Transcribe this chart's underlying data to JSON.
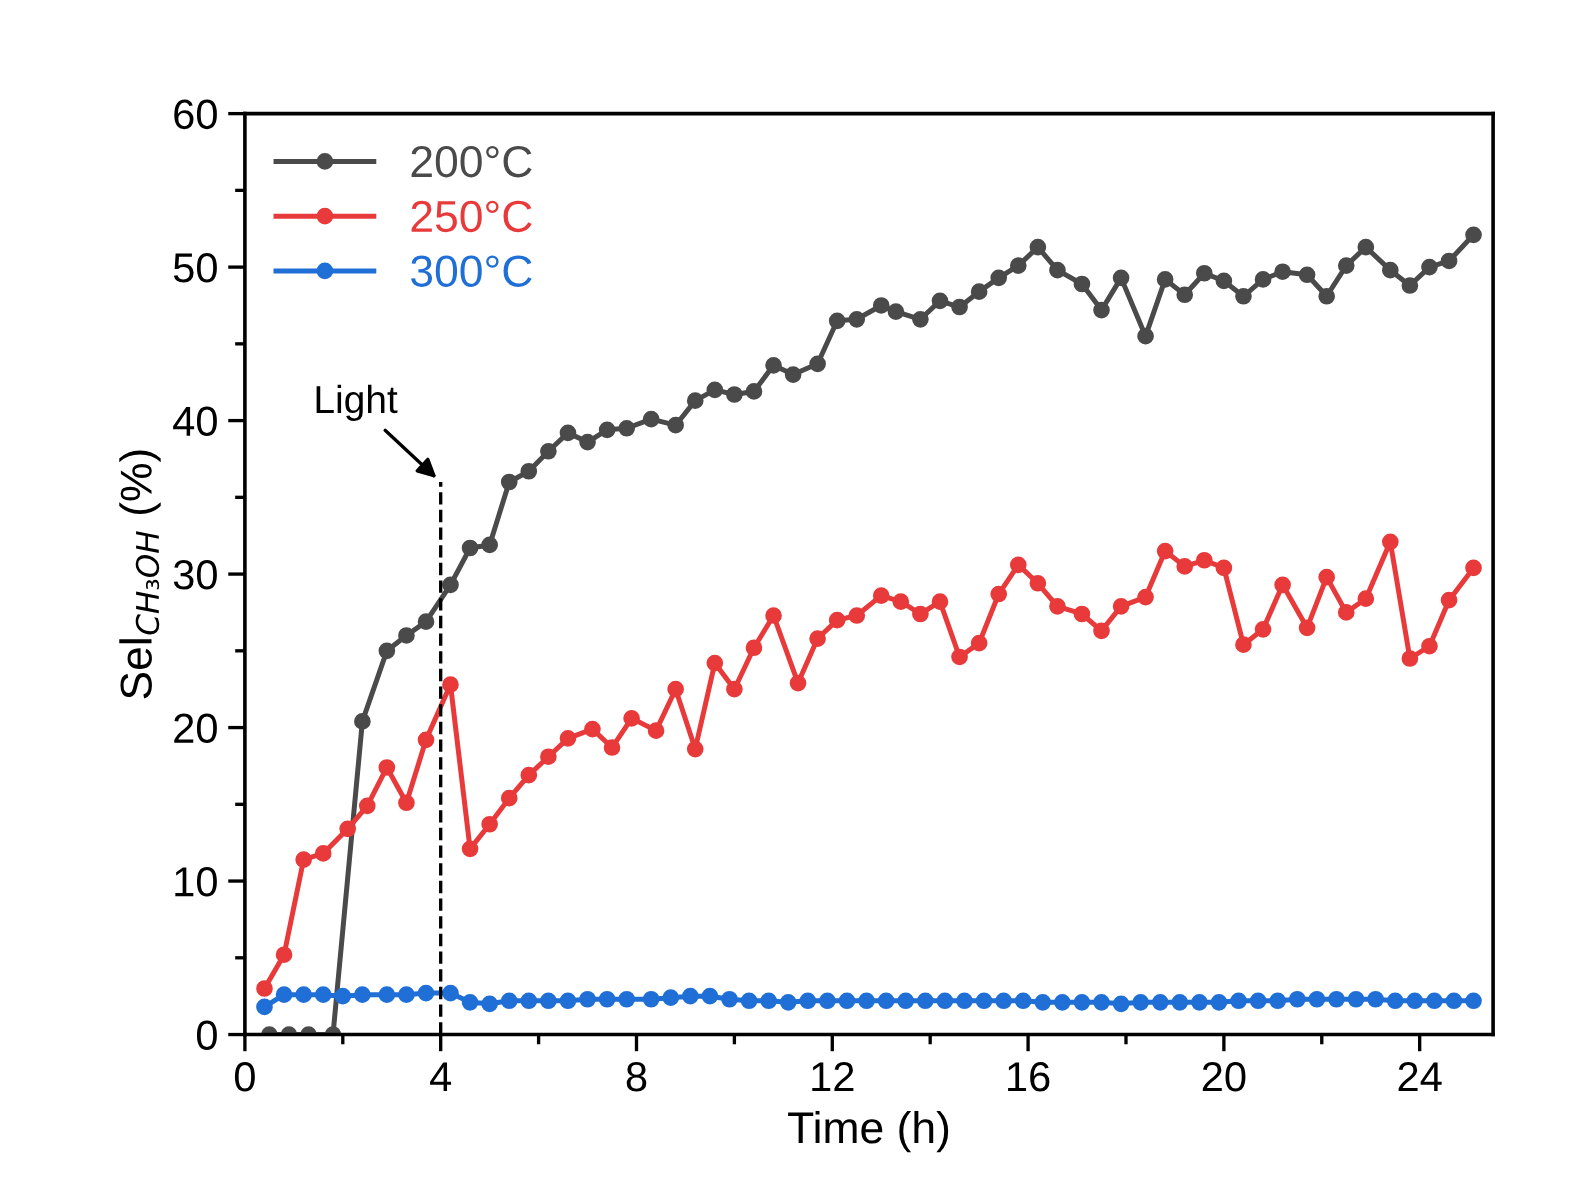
{
  "chart_data": {
    "type": "line",
    "xlabel": "Time (h)",
    "ylabel": "Sel$_{CH₃OH}$ (%)",
    "xlim": [
      0,
      25.5
    ],
    "ylim": [
      0,
      60
    ],
    "xticks": [
      0,
      {
        "value": 2,
        "label": null
      },
      4,
      {
        "value": 6,
        "label": null
      },
      8,
      {
        "value": 10,
        "label": null
      },
      12,
      {
        "value": 14,
        "label": null
      },
      16,
      {
        "value": 18,
        "label": null
      },
      20,
      {
        "value": 22,
        "label": null
      },
      24
    ],
    "yticks": [
      0,
      {
        "value": 5,
        "label": null
      },
      10,
      {
        "value": 15,
        "label": null
      },
      20,
      {
        "value": 25,
        "label": null
      },
      30,
      {
        "value": 35,
        "label": null
      },
      40,
      {
        "value": 45,
        "label": null
      },
      50,
      {
        "value": 55,
        "label": null
      },
      60
    ],
    "marker": "circle",
    "line_style": "solid",
    "legend": "top left",
    "grid": false,
    "annotations": [
      {
        "text": "Light",
        "x": 4,
        "y": 36
      }
    ],
    "ref_lines": [
      {
        "axis": "x",
        "value": 4,
        "color": "#000000",
        "line_style": "dashed"
      }
    ],
    "series": [
      {
        "name": "200°C",
        "color": "#4a4a4a",
        "x": [
          0.5,
          0.9,
          1.3,
          1.8,
          2.4,
          2.9,
          3.3,
          3.7,
          4.2,
          4.6,
          5.0,
          5.4,
          5.8,
          6.2,
          6.6,
          7.0,
          7.4,
          7.8,
          8.3,
          8.8,
          9.2,
          9.6,
          10.0,
          10.4,
          10.8,
          11.2,
          11.7,
          12.1,
          12.5,
          13.0,
          13.3,
          13.8,
          14.2,
          14.6,
          15.0,
          15.4,
          15.8,
          16.2,
          16.6,
          17.1,
          17.5,
          17.9,
          18.4,
          18.8,
          19.2,
          19.6,
          20.0,
          20.4,
          20.8,
          21.2,
          21.7,
          22.1,
          22.5,
          22.9,
          23.4,
          23.8,
          24.2,
          24.6,
          25.1
        ],
        "values": [
          0,
          0,
          0,
          0,
          20.4,
          25.0,
          26.0,
          26.9,
          29.3,
          31.7,
          31.9,
          36.0,
          36.7,
          38.0,
          39.2,
          38.6,
          39.4,
          39.5,
          40.1,
          39.7,
          41.3,
          42.0,
          41.7,
          41.9,
          43.6,
          43.0,
          43.7,
          46.5,
          46.6,
          47.5,
          47.1,
          46.6,
          47.8,
          47.4,
          48.4,
          49.3,
          50.1,
          51.3,
          49.8,
          48.9,
          47.2,
          49.3,
          45.5,
          49.2,
          48.2,
          49.6,
          49.1,
          48.1,
          49.2,
          49.7,
          49.5,
          48.1,
          50.1,
          51.3,
          49.8,
          48.8,
          50.0,
          50.4,
          52.1
        ]
      },
      {
        "name": "250°C",
        "color": "#e83a3a",
        "x": [
          0.4,
          0.8,
          1.2,
          1.6,
          2.1,
          2.5,
          2.9,
          3.3,
          3.7,
          4.2,
          4.6,
          5.0,
          5.4,
          5.8,
          6.2,
          6.6,
          7.1,
          7.5,
          7.9,
          8.4,
          8.8,
          9.2,
          9.6,
          10.0,
          10.4,
          10.8,
          11.3,
          11.7,
          12.1,
          12.5,
          13.0,
          13.4,
          13.8,
          14.2,
          14.6,
          15.0,
          15.4,
          15.8,
          16.2,
          16.6,
          17.1,
          17.5,
          17.9,
          18.4,
          18.8,
          19.2,
          19.6,
          20.0,
          20.4,
          20.8,
          21.2,
          21.7,
          22.1,
          22.5,
          22.9,
          23.4,
          23.8,
          24.2,
          24.6,
          25.1
        ],
        "values": [
          3.0,
          5.2,
          11.4,
          11.8,
          13.4,
          14.9,
          17.4,
          15.1,
          19.2,
          22.8,
          12.1,
          13.7,
          15.4,
          16.9,
          18.1,
          19.3,
          19.9,
          18.7,
          20.6,
          19.8,
          22.5,
          18.6,
          24.2,
          22.5,
          25.2,
          27.3,
          22.9,
          25.8,
          27.0,
          27.3,
          28.6,
          28.2,
          27.4,
          28.2,
          24.6,
          25.5,
          28.7,
          30.6,
          29.4,
          27.9,
          27.4,
          26.3,
          27.9,
          28.5,
          31.5,
          30.5,
          30.9,
          30.4,
          25.4,
          26.4,
          29.3,
          26.5,
          29.8,
          27.5,
          28.4,
          32.1,
          24.5,
          25.3,
          28.3,
          30.4
        ]
      },
      {
        "name": "300°C",
        "color": "#1f6fd6",
        "x": [
          0.4,
          0.8,
          1.2,
          1.6,
          2.0,
          2.4,
          2.9,
          3.3,
          3.7,
          4.2,
          4.6,
          5.0,
          5.4,
          5.8,
          6.2,
          6.6,
          7.0,
          7.4,
          7.8,
          8.3,
          8.7,
          9.1,
          9.5,
          9.9,
          10.3,
          10.7,
          11.1,
          11.5,
          11.9,
          12.3,
          12.7,
          13.1,
          13.5,
          13.9,
          14.3,
          14.7,
          15.1,
          15.5,
          15.9,
          16.3,
          16.7,
          17.1,
          17.5,
          17.9,
          18.3,
          18.7,
          19.1,
          19.5,
          19.9,
          20.3,
          20.7,
          21.1,
          21.5,
          21.9,
          22.3,
          22.7,
          23.1,
          23.5,
          23.9,
          24.3,
          24.7,
          25.1
        ],
        "values": [
          1.8,
          2.6,
          2.6,
          2.6,
          2.5,
          2.6,
          2.6,
          2.6,
          2.7,
          2.7,
          2.1,
          2.0,
          2.2,
          2.2,
          2.2,
          2.2,
          2.3,
          2.3,
          2.3,
          2.3,
          2.4,
          2.5,
          2.5,
          2.3,
          2.2,
          2.2,
          2.1,
          2.2,
          2.2,
          2.2,
          2.2,
          2.2,
          2.2,
          2.2,
          2.2,
          2.2,
          2.2,
          2.2,
          2.2,
          2.1,
          2.1,
          2.1,
          2.1,
          2.0,
          2.1,
          2.1,
          2.1,
          2.1,
          2.1,
          2.2,
          2.2,
          2.2,
          2.3,
          2.3,
          2.3,
          2.3,
          2.3,
          2.2,
          2.2,
          2.2,
          2.2,
          2.2
        ]
      }
    ]
  }
}
